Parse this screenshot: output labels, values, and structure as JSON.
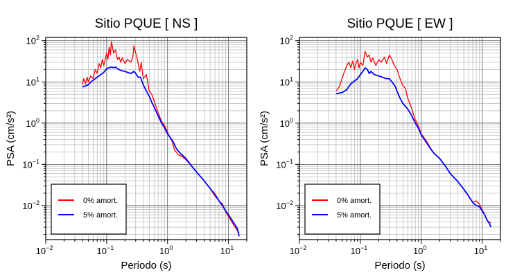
{
  "chart_data": [
    {
      "type": "line",
      "title": "Sitio PQUE [ NS ]",
      "xlabel": "Periodo (s)",
      "ylabel": "PSA (cm/s²)",
      "xscale": "log",
      "yscale": "log",
      "xlim": [
        0.01,
        20
      ],
      "ylim": [
        0.0015,
        120
      ],
      "grid": true,
      "legend_position": "bottom-left",
      "x_ticks": [
        {
          "base": "10",
          "exp": "−2"
        },
        {
          "base": "10",
          "exp": "−1"
        },
        {
          "base": "10",
          "exp": "0"
        },
        {
          "base": "10",
          "exp": "1"
        }
      ],
      "y_ticks": [
        {
          "base": "10",
          "exp": "−2"
        },
        {
          "base": "10",
          "exp": "−1"
        },
        {
          "base": "10",
          "exp": "0"
        },
        {
          "base": "10",
          "exp": "1"
        },
        {
          "base": "10",
          "exp": "2"
        }
      ],
      "series": [
        {
          "name": "0% amort.",
          "color": "#ff0000",
          "points": [
            [
              0.04,
              8.5
            ],
            [
              0.042,
              12
            ],
            [
              0.045,
              9
            ],
            [
              0.048,
              13
            ],
            [
              0.05,
              10
            ],
            [
              0.055,
              14
            ],
            [
              0.06,
              12
            ],
            [
              0.065,
              20
            ],
            [
              0.07,
              16
            ],
            [
              0.075,
              28
            ],
            [
              0.08,
              22
            ],
            [
              0.085,
              35
            ],
            [
              0.09,
              25
            ],
            [
              0.1,
              50
            ],
            [
              0.105,
              35
            ],
            [
              0.11,
              70
            ],
            [
              0.115,
              45
            ],
            [
              0.12,
              95
            ],
            [
              0.13,
              50
            ],
            [
              0.14,
              60
            ],
            [
              0.15,
              35
            ],
            [
              0.16,
              40
            ],
            [
              0.17,
              30
            ],
            [
              0.18,
              38
            ],
            [
              0.2,
              28
            ],
            [
              0.22,
              35
            ],
            [
              0.25,
              30
            ],
            [
              0.27,
              40
            ],
            [
              0.28,
              75
            ],
            [
              0.3,
              50
            ],
            [
              0.32,
              35
            ],
            [
              0.35,
              18
            ],
            [
              0.37,
              30
            ],
            [
              0.4,
              12
            ],
            [
              0.45,
              15
            ],
            [
              0.5,
              6
            ],
            [
              0.55,
              5
            ],
            [
              0.6,
              3.5
            ],
            [
              0.7,
              1.8
            ],
            [
              0.8,
              1.1
            ],
            [
              0.9,
              0.85
            ],
            [
              1.0,
              0.6
            ],
            [
              1.1,
              0.45
            ],
            [
              1.2,
              0.35
            ],
            [
              1.3,
              0.22
            ],
            [
              1.4,
              0.2
            ],
            [
              1.5,
              0.17
            ],
            [
              1.7,
              0.16
            ],
            [
              2.0,
              0.13
            ],
            [
              2.5,
              0.09
            ],
            [
              3.0,
              0.065
            ],
            [
              4.0,
              0.04
            ],
            [
              5.0,
              0.026
            ],
            [
              6.0,
              0.017
            ],
            [
              7.0,
              0.013
            ],
            [
              8.0,
              0.011
            ],
            [
              9.0,
              0.007
            ],
            [
              10.0,
              0.0055
            ],
            [
              12.0,
              0.0035
            ],
            [
              14.0,
              0.0025
            ],
            [
              15.0,
              0.0022
            ]
          ]
        },
        {
          "name": "5% amort.",
          "color": "#0000ff",
          "points": [
            [
              0.04,
              7.5
            ],
            [
              0.045,
              8
            ],
            [
              0.05,
              8.5
            ],
            [
              0.055,
              10
            ],
            [
              0.06,
              11
            ],
            [
              0.07,
              13
            ],
            [
              0.08,
              15
            ],
            [
              0.09,
              17
            ],
            [
              0.1,
              21
            ],
            [
              0.11,
              22
            ],
            [
              0.12,
              23
            ],
            [
              0.13,
              22
            ],
            [
              0.14,
              23
            ],
            [
              0.15,
              21
            ],
            [
              0.17,
              19
            ],
            [
              0.2,
              18
            ],
            [
              0.22,
              17
            ],
            [
              0.25,
              16
            ],
            [
              0.28,
              18
            ],
            [
              0.3,
              16
            ],
            [
              0.33,
              13
            ],
            [
              0.36,
              13
            ],
            [
              0.4,
              8.5
            ],
            [
              0.45,
              6
            ],
            [
              0.5,
              4.5
            ],
            [
              0.55,
              3.2
            ],
            [
              0.6,
              2.5
            ],
            [
              0.7,
              1.5
            ],
            [
              0.8,
              1.0
            ],
            [
              0.9,
              0.75
            ],
            [
              1.0,
              0.55
            ],
            [
              1.2,
              0.38
            ],
            [
              1.4,
              0.24
            ],
            [
              1.6,
              0.19
            ],
            [
              2.0,
              0.14
            ],
            [
              2.5,
              0.09
            ],
            [
              3.0,
              0.065
            ],
            [
              4.0,
              0.04
            ],
            [
              5.0,
              0.026
            ],
            [
              6.0,
              0.019
            ],
            [
              7.0,
              0.013
            ],
            [
              8.0,
              0.01
            ],
            [
              9.0,
              0.0075
            ],
            [
              10.0,
              0.006
            ],
            [
              12.0,
              0.004
            ],
            [
              14.0,
              0.0028
            ],
            [
              15.0,
              0.0018
            ]
          ]
        }
      ]
    },
    {
      "type": "line",
      "title": "Sitio PQUE [ EW ]",
      "xlabel": "Periodo (s)",
      "ylabel": "PSA (cm/s²)",
      "xscale": "log",
      "yscale": "log",
      "xlim": [
        0.01,
        20
      ],
      "ylim": [
        0.0015,
        120
      ],
      "grid": true,
      "legend_position": "bottom-left",
      "x_ticks": [
        {
          "base": "10",
          "exp": "−2"
        },
        {
          "base": "10",
          "exp": "−1"
        },
        {
          "base": "10",
          "exp": "0"
        },
        {
          "base": "10",
          "exp": "1"
        }
      ],
      "y_ticks": [
        {
          "base": "10",
          "exp": "−2"
        },
        {
          "base": "10",
          "exp": "−1"
        },
        {
          "base": "10",
          "exp": "0"
        },
        {
          "base": "10",
          "exp": "1"
        },
        {
          "base": "10",
          "exp": "2"
        }
      ],
      "series": [
        {
          "name": "0% amort.",
          "color": "#ff0000",
          "points": [
            [
              0.04,
              6
            ],
            [
              0.045,
              7.5
            ],
            [
              0.05,
              12
            ],
            [
              0.055,
              18
            ],
            [
              0.06,
              25
            ],
            [
              0.065,
              30
            ],
            [
              0.07,
              22
            ],
            [
              0.075,
              32
            ],
            [
              0.08,
              20
            ],
            [
              0.085,
              28
            ],
            [
              0.09,
              35
            ],
            [
              0.095,
              22
            ],
            [
              0.1,
              30
            ],
            [
              0.11,
              25
            ],
            [
              0.12,
              55
            ],
            [
              0.13,
              40
            ],
            [
              0.14,
              45
            ],
            [
              0.15,
              30
            ],
            [
              0.16,
              38
            ],
            [
              0.18,
              25
            ],
            [
              0.2,
              35
            ],
            [
              0.22,
              30
            ],
            [
              0.25,
              40
            ],
            [
              0.27,
              28
            ],
            [
              0.3,
              45
            ],
            [
              0.33,
              35
            ],
            [
              0.36,
              25
            ],
            [
              0.4,
              20
            ],
            [
              0.45,
              12
            ],
            [
              0.5,
              8
            ],
            [
              0.55,
              7
            ],
            [
              0.6,
              4
            ],
            [
              0.65,
              3
            ],
            [
              0.7,
              2.2
            ],
            [
              0.8,
              1.2
            ],
            [
              0.9,
              0.85
            ],
            [
              1.0,
              0.55
            ],
            [
              1.2,
              0.38
            ],
            [
              1.4,
              0.26
            ],
            [
              1.6,
              0.19
            ],
            [
              2.0,
              0.14
            ],
            [
              2.5,
              0.09
            ],
            [
              3.0,
              0.06
            ],
            [
              4.0,
              0.038
            ],
            [
              5.0,
              0.025
            ],
            [
              6.0,
              0.017
            ],
            [
              7.0,
              0.012
            ],
            [
              8.0,
              0.013
            ],
            [
              9.0,
              0.011
            ],
            [
              10.0,
              0.008
            ],
            [
              11.0,
              0.006
            ],
            [
              12.0,
              0.0045
            ],
            [
              13.0,
              0.004
            ],
            [
              14.0,
              0.0038
            ]
          ]
        },
        {
          "name": "5% amort.",
          "color": "#0000ff",
          "points": [
            [
              0.04,
              5.2
            ],
            [
              0.05,
              5.5
            ],
            [
              0.06,
              6.5
            ],
            [
              0.07,
              9
            ],
            [
              0.08,
              10.5
            ],
            [
              0.09,
              12
            ],
            [
              0.1,
              15
            ],
            [
              0.11,
              18
            ],
            [
              0.12,
              22
            ],
            [
              0.13,
              20
            ],
            [
              0.14,
              16
            ],
            [
              0.15,
              18
            ],
            [
              0.17,
              15
            ],
            [
              0.2,
              14
            ],
            [
              0.23,
              13
            ],
            [
              0.27,
              12
            ],
            [
              0.3,
              12
            ],
            [
              0.33,
              10
            ],
            [
              0.37,
              8
            ],
            [
              0.4,
              6
            ],
            [
              0.45,
              4
            ],
            [
              0.5,
              3
            ],
            [
              0.6,
              2.2
            ],
            [
              0.7,
              1.5
            ],
            [
              0.8,
              1.0
            ],
            [
              0.9,
              0.75
            ],
            [
              1.0,
              0.52
            ],
            [
              1.2,
              0.35
            ],
            [
              1.4,
              0.25
            ],
            [
              1.6,
              0.19
            ],
            [
              2.0,
              0.14
            ],
            [
              2.5,
              0.09
            ],
            [
              3.0,
              0.06
            ],
            [
              4.0,
              0.038
            ],
            [
              5.0,
              0.025
            ],
            [
              6.0,
              0.017
            ],
            [
              7.0,
              0.012
            ],
            [
              8.0,
              0.01
            ],
            [
              9.0,
              0.0095
            ],
            [
              10.0,
              0.0075
            ],
            [
              11.0,
              0.006
            ],
            [
              12.0,
              0.0045
            ],
            [
              13.0,
              0.0038
            ],
            [
              14.0,
              0.003
            ]
          ]
        }
      ]
    }
  ]
}
